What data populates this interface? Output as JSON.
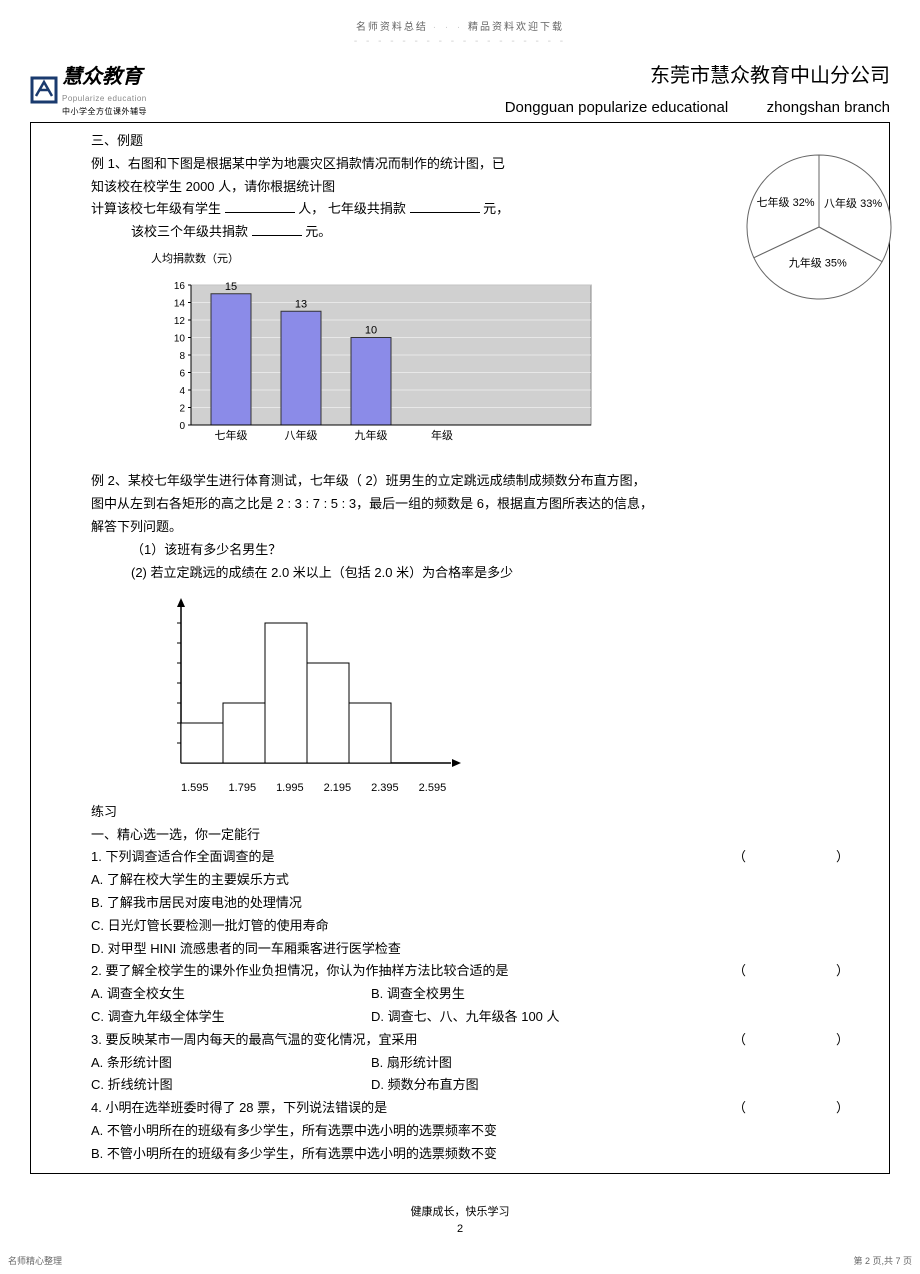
{
  "header_note": {
    "text": "名师资料总结",
    "sep": "· · ·",
    "text2": "精品资料欢迎下载"
  },
  "logo": {
    "main": "慧众教育",
    "sub1": "Popularize education",
    "sub2": "中小学全方位课外辅导"
  },
  "brand": {
    "main": "东莞市慧众教育中山分公司",
    "sub_left": "Dongguan popularize educational",
    "sub_right": "zhongshan branch"
  },
  "sec3_title": "三、例题",
  "ex1": {
    "l1a": "例  1、右图和下图是根据某中学为地震灾区捐款情况而制作的统计图，已",
    "l1b": "知该校在校学生    2000 人，请你根据统计图",
    "l2a": "计算该校七年级有学生",
    "l2b": "人，    七年级共捐款",
    "l2c": "元，",
    "l3a": "该校三个年级共捐款",
    "l3b": "元。"
  },
  "bar_chart": {
    "title": "人均捐款数（元）",
    "ylim": [
      0,
      16
    ],
    "ytick_step": 2,
    "yticks": [
      0,
      2,
      4,
      6,
      8,
      10,
      12,
      14,
      16
    ],
    "categories": [
      "七年级",
      "八年级",
      "九年级"
    ],
    "x_unit": "年级",
    "values": [
      15,
      13,
      10
    ],
    "labels": [
      "15",
      "13",
      "10"
    ],
    "bar_color": "#8b8be8",
    "plot_bg": "#d0d0d0",
    "border": "#888"
  },
  "pie": {
    "slices": [
      {
        "label": "八年级 33%",
        "angle": 118.8
      },
      {
        "label": "九年级 35%",
        "angle": 126.0
      },
      {
        "label": "七年级 32%",
        "angle": 115.2
      }
    ],
    "stroke": "#666"
  },
  "ex2": {
    "l1": "例  2、某校七年级学生进行体育测试，七年级（      2）班男生的立定跳远成绩制成频数分布直方图，",
    "l2": "图中从左到右各矩形的高之比是     2 : 3 : 7 : 5 : 3，最后一组的频数是     6，根据直方图所表达的信息，",
    "l3": "解答下列问题。",
    "q1": "（1）该班有多少名男生？",
    "q2": "(2) 若立定跳远的成绩在    2.0 米以上（包括   2.0 米）为合格率是多少"
  },
  "hist": {
    "heights": [
      2,
      3,
      7,
      5,
      3
    ],
    "xlabels": [
      "1.595",
      "1.795",
      "1.995",
      "2.195",
      "2.395",
      "2.595"
    ],
    "stroke": "#000"
  },
  "practice_title": "练习",
  "sub_title": "一、精心选一选，你一定能行",
  "q": [
    {
      "n": "1",
      "t": "下列调查适合作全面调查的是",
      "opts": [
        "A. 了解在校大学生的主要娱乐方式",
        "B. 了解我市居民对废电池的处理情况",
        "C. 日光灯管长要检测一批灯管的使用寿命",
        "D. 对甲型  HINI  流感患者的同一车厢乘客进行医学检查"
      ],
      "paren": true,
      "layout": "v"
    },
    {
      "n": "2",
      "t": "要了解全校学生的课外作业负担情况，你认为作抽样方法比较合适的是",
      "opts": [
        "A. 调查全校女生",
        "B. 调查全校男生",
        "C. 调查九年级全体学生",
        "D. 调查七、八、九年级各    100 人"
      ],
      "paren": true,
      "layout": "h2"
    },
    {
      "n": "3",
      "t": "要反映某市一周内每天的最高气温的变化情况，宜采用",
      "opts": [
        "A. 条形统计图",
        "B. 扇形统计图",
        "C. 折线统计图",
        "D. 频数分布直方图"
      ],
      "paren": true,
      "layout": "h2"
    },
    {
      "n": "4",
      "t": "小明在选举班委时得了    28 票，下列说法错误的是",
      "opts": [
        "A. 不管小明所在的班级有多少学生，所有选票中选小明的选票频率不变",
        "B.   不管小明所在的班级有多少学生，所有选票中选小明的选票频数不变"
      ],
      "paren": true,
      "layout": "v"
    }
  ],
  "footer": {
    "l1": "健康成长，快乐学习",
    "l2": "2"
  },
  "corner": {
    "left": "名师精心整理",
    "right": "第 2 页,共 7 页"
  }
}
